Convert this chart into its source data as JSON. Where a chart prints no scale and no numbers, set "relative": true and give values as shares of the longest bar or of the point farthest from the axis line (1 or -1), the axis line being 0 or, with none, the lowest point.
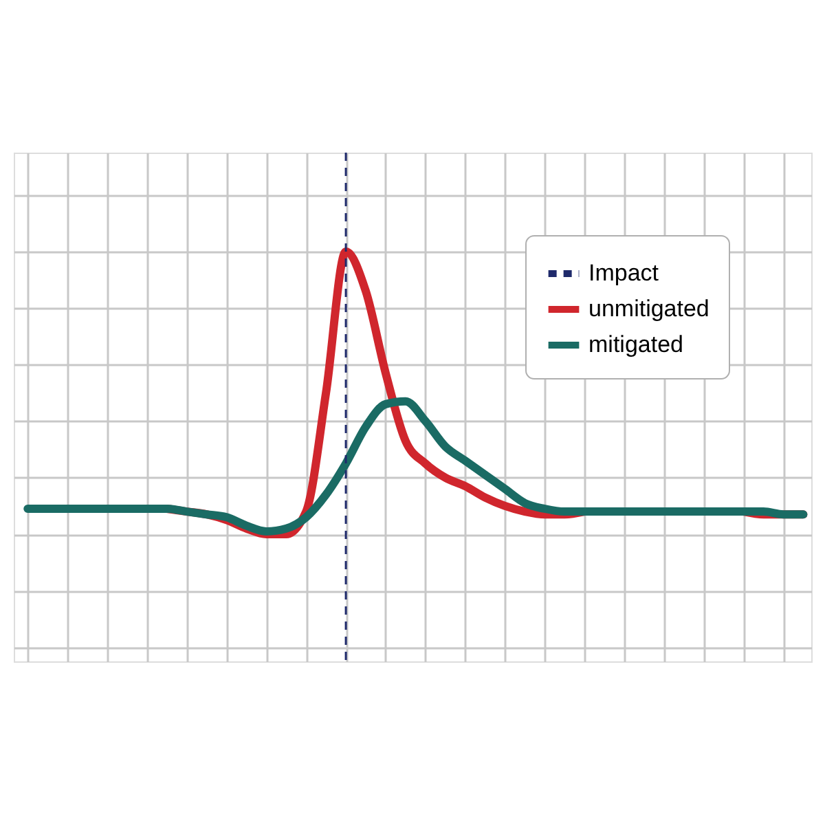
{
  "chart_data": {
    "type": "line",
    "relative": true,
    "grid": true,
    "legend": "top right",
    "line_style": "solid",
    "marker": "none",
    "categories": [
      null,
      null,
      null,
      null,
      null,
      null,
      null,
      null,
      null,
      null,
      null,
      null,
      null,
      null,
      null,
      null,
      null,
      null,
      null,
      null,
      null,
      null,
      null,
      null,
      null,
      null,
      null,
      null,
      null,
      null,
      null,
      null,
      null,
      null,
      null,
      null,
      null,
      null,
      null,
      null
    ],
    "series": [
      {
        "name": "unmitigated",
        "color": "#d0262d",
        "values": [
          null,
          null,
          null,
          null,
          null,
          null,
          null,
          0.09,
          0.08,
          0.07,
          0.05,
          0.02,
          0.0,
          0.0,
          0.08,
          0.5,
          1.0,
          0.86,
          0.57,
          0.33,
          0.25,
          0.2,
          0.17,
          0.13,
          0.1,
          0.08,
          0.07,
          0.07,
          0.08,
          null,
          null,
          null,
          null,
          null,
          null,
          null,
          0.08,
          0.07,
          0.07,
          0.07
        ]
      },
      {
        "name": "mitigated",
        "color": "#1a6b64",
        "values": [
          0.09,
          0.09,
          0.09,
          0.09,
          0.09,
          0.09,
          0.09,
          0.09,
          0.08,
          0.07,
          0.06,
          0.03,
          0.01,
          0.02,
          0.06,
          0.14,
          0.25,
          0.38,
          0.46,
          0.47,
          0.4,
          0.31,
          0.26,
          0.21,
          0.16,
          0.11,
          0.09,
          0.08,
          0.08,
          0.08,
          0.08,
          0.08,
          0.08,
          0.08,
          0.08,
          0.08,
          0.08,
          0.08,
          0.07,
          0.07
        ]
      }
    ],
    "annotations": [
      "Impact"
    ]
  }
}
